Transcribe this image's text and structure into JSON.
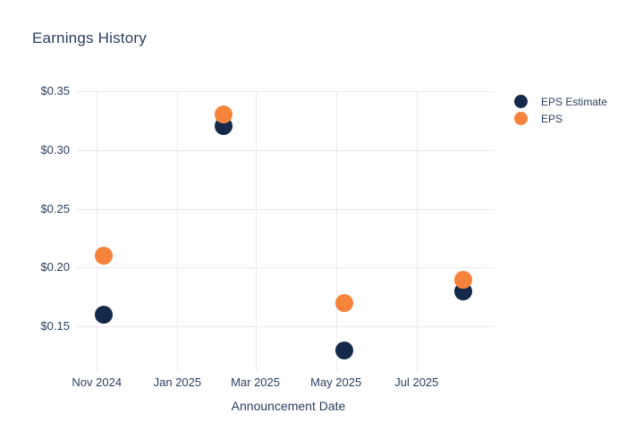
{
  "chart": {
    "title": "Earnings History"
  },
  "chart_data": {
    "type": "scatter",
    "title": "Earnings History",
    "xlabel": "Announcement Date",
    "ylabel": "",
    "x": [
      "2024-11-06",
      "2025-02-05",
      "2025-05-07",
      "2025-08-05"
    ],
    "series": [
      {
        "name": "EPS Estimate",
        "color": "#152a4a",
        "values": [
          0.16,
          0.32,
          0.13,
          0.18
        ]
      },
      {
        "name": "EPS",
        "color": "#f5833c",
        "values": [
          0.21,
          0.33,
          0.17,
          0.19
        ]
      }
    ],
    "x_ticks": [
      {
        "date": "2024-11-01",
        "label": "Nov 2024"
      },
      {
        "date": "2025-01-01",
        "label": "Jan 2025"
      },
      {
        "date": "2025-03-01",
        "label": "Mar 2025"
      },
      {
        "date": "2025-05-01",
        "label": "May 2025"
      },
      {
        "date": "2025-07-01",
        "label": "Jul 2025"
      }
    ],
    "y_ticks": [
      {
        "value": 0.15,
        "label": "$0.15"
      },
      {
        "value": 0.2,
        "label": "$0.20"
      },
      {
        "value": 0.25,
        "label": "$0.25"
      },
      {
        "value": 0.3,
        "label": "$0.30"
      },
      {
        "value": 0.35,
        "label": "$0.35"
      }
    ],
    "xlim": [
      "2024-10-21",
      "2025-08-29"
    ],
    "ylim": [
      0.116,
      0.35
    ],
    "grid": true,
    "legend_position": "right",
    "marker_size_px": 20
  },
  "colors": {
    "text": "#2a3f5f",
    "grid": "#e9e9f2",
    "background": "#ffffff"
  }
}
